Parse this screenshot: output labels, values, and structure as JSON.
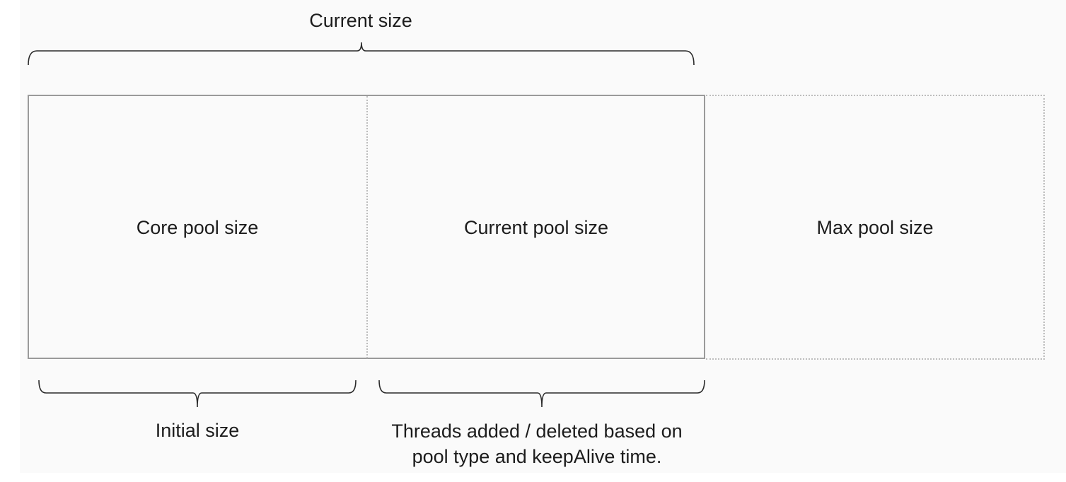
{
  "top_label": "Current size",
  "boxes": {
    "core": "Core pool size",
    "current": "Current pool size",
    "max": "Max pool size"
  },
  "bottom_labels": {
    "initial": "Initial size",
    "threads_line1": "Threads added / deleted based on",
    "threads_line2": "pool type and keepAlive time."
  }
}
